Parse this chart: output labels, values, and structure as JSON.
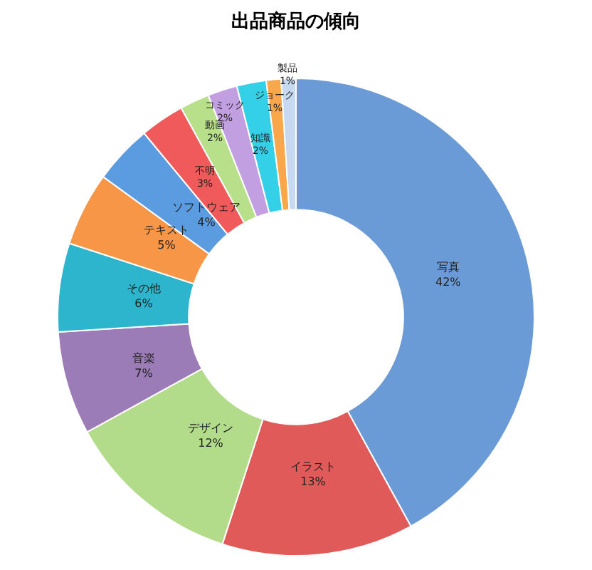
{
  "chart_data": {
    "type": "donut",
    "title": "出品商品の傾向",
    "categories": [
      "写真",
      "イラスト",
      "デザイン",
      "音楽",
      "その他",
      "テキスト",
      "ソフトウェア",
      "不明",
      "動画",
      "コミック",
      "知識",
      "ジョーク",
      "製品"
    ],
    "values": [
      42,
      13,
      12,
      7,
      6,
      5,
      4,
      3,
      2,
      2,
      2,
      1,
      1
    ],
    "value_labels": [
      "42%",
      "13%",
      "12%",
      "7%",
      "6%",
      "5%",
      "4%",
      "3%",
      "2%",
      "2%",
      "2%",
      "1%",
      "1%"
    ],
    "colors": [
      "#6a9bd6",
      "#e05a5a",
      "#b3dc8a",
      "#9b7cb6",
      "#2cb5cc",
      "#f79646",
      "#5b9be0",
      "#f05a5a",
      "#b8e08a",
      "#c29fe0",
      "#33d0e8",
      "#f9a74a",
      "#c6d9f1"
    ],
    "legend": false
  }
}
